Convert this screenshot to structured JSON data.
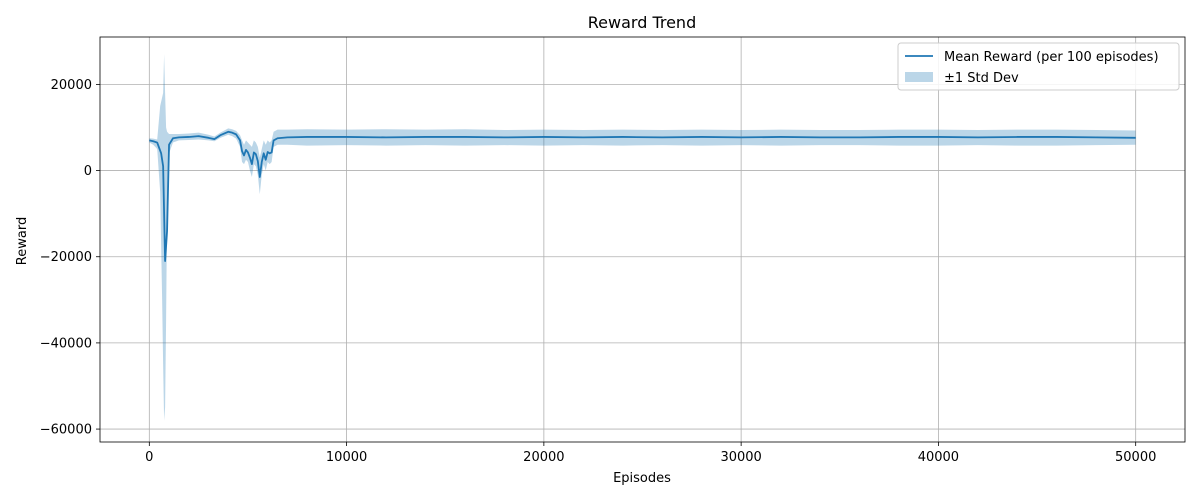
{
  "chart_data": {
    "type": "line",
    "title": "Reward Trend",
    "xlabel": "Episodes",
    "ylabel": "Reward",
    "xlim": [
      -2500,
      52500
    ],
    "ylim": [
      -63000,
      31000
    ],
    "xticks": [
      0,
      10000,
      20000,
      30000,
      40000,
      50000
    ],
    "yticks": [
      -60000,
      -40000,
      -20000,
      0,
      20000
    ],
    "xtick_labels": [
      "0",
      "10000",
      "20000",
      "30000",
      "40000",
      "50000"
    ],
    "ytick_labels": [
      "−60000",
      "−40000",
      "−20000",
      "0",
      "20000"
    ],
    "grid": true,
    "legend_position": "top-right",
    "series": [
      {
        "name": "Mean Reward (per 100 episodes)",
        "kind": "line",
        "color": "#1f77b4",
        "x": [
          0,
          200,
          400,
          600,
          700,
          800,
          900,
          1000,
          1200,
          1500,
          2000,
          2500,
          3000,
          3300,
          3600,
          4000,
          4200,
          4400,
          4600,
          4700,
          4800,
          4900,
          5000,
          5100,
          5200,
          5300,
          5400,
          5500,
          5600,
          5700,
          5800,
          5900,
          6000,
          6100,
          6200,
          6300,
          6500,
          7000,
          8000,
          10000,
          12000,
          14000,
          16000,
          18000,
          20000,
          22000,
          24000,
          26000,
          28000,
          30000,
          32000,
          34000,
          36000,
          38000,
          40000,
          42000,
          44000,
          46000,
          48000,
          50000
        ],
        "y": [
          7000,
          6800,
          6500,
          4000,
          1000,
          -21000,
          -14000,
          6000,
          7500,
          7700,
          7800,
          8000,
          7600,
          7300,
          8200,
          9000,
          8800,
          8400,
          7000,
          4500,
          3500,
          4800,
          4200,
          3000,
          1500,
          4200,
          3800,
          2200,
          -1500,
          2000,
          4000,
          2500,
          4300,
          4000,
          4200,
          7000,
          7500,
          7700,
          7800,
          7800,
          7700,
          7800,
          7800,
          7700,
          7800,
          7700,
          7800,
          7700,
          7800,
          7700,
          7800,
          7700,
          7700,
          7800,
          7800,
          7700,
          7800,
          7800,
          7700,
          7600
        ]
      },
      {
        "name": "±1 Std Dev",
        "kind": "band",
        "color": "#1f77b4",
        "opacity": 0.3,
        "x": [
          0,
          200,
          400,
          550,
          650,
          700,
          750,
          800,
          850,
          900,
          1000,
          1200,
          1500,
          2000,
          2500,
          3000,
          3300,
          3600,
          4000,
          4200,
          4400,
          4600,
          4700,
          4800,
          4900,
          5000,
          5100,
          5200,
          5300,
          5400,
          5500,
          5600,
          5700,
          5800,
          5900,
          6000,
          6100,
          6200,
          6300,
          6500,
          7000,
          8000,
          10000,
          12000,
          14000,
          16000,
          18000,
          20000,
          22000,
          24000,
          26000,
          28000,
          30000,
          32000,
          34000,
          36000,
          38000,
          40000,
          42000,
          44000,
          46000,
          48000,
          50000
        ],
        "upper": [
          7500,
          7400,
          7200,
          15000,
          17000,
          18000,
          27000,
          18000,
          10000,
          9000,
          8500,
          8500,
          8500,
          8600,
          8800,
          8300,
          7900,
          8800,
          9800,
          9600,
          9200,
          8200,
          7000,
          6000,
          7000,
          6500,
          6000,
          5500,
          7000,
          6500,
          5500,
          3000,
          5000,
          7000,
          6000,
          7000,
          6500,
          7000,
          9000,
          9500,
          9500,
          9600,
          9500,
          9600,
          9500,
          9600,
          9400,
          9500,
          9400,
          9500,
          9400,
          9500,
          9400,
          9500,
          9400,
          9400,
          9500,
          9500,
          9400,
          9500,
          9500,
          9400,
          9300
        ],
        "lower": [
          6500,
          6000,
          5000,
          -5000,
          -30000,
          -45000,
          -58000,
          -55000,
          -35000,
          -10000,
          4000,
          6500,
          7000,
          7100,
          7200,
          7000,
          6800,
          7600,
          8300,
          8000,
          7400,
          5500,
          2000,
          1500,
          2500,
          2000,
          0,
          -1500,
          1500,
          1000,
          -1000,
          -5500,
          -1000,
          1500,
          0,
          2000,
          1500,
          2000,
          5500,
          6000,
          6000,
          5800,
          5900,
          5800,
          5900,
          5800,
          5900,
          5800,
          5900,
          5800,
          5900,
          5800,
          5900,
          5800,
          5900,
          5900,
          5800,
          5800,
          5900,
          5800,
          5800,
          5900,
          6000
        ]
      }
    ]
  }
}
